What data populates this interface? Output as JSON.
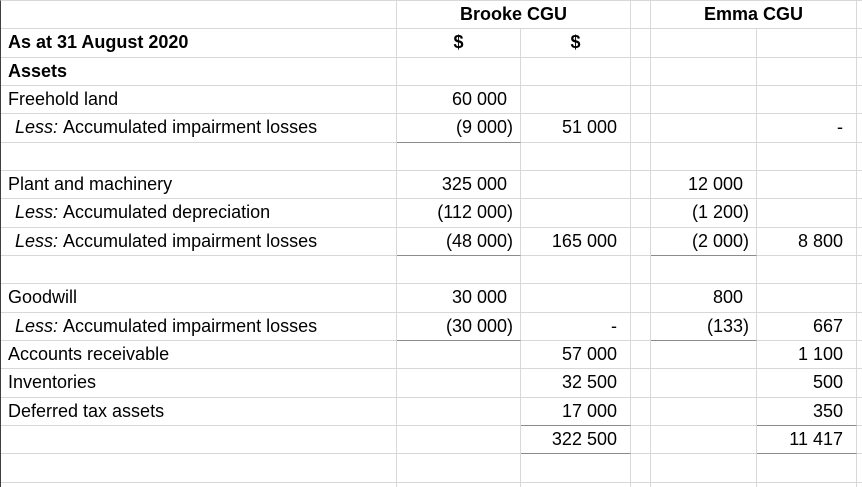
{
  "header_row": {
    "brooke": "Brooke CGU",
    "emma": "Emma CGU"
  },
  "unit_row": {
    "label": "As at 31 August 2020",
    "brooke_col1_unit": "$",
    "brooke_col2_unit": "$"
  },
  "body": [
    {
      "label": "Assets"
    },
    {
      "label": "Freehold land",
      "b": "60 000"
    },
    {
      "less": "Less:",
      "label": "Accumulated impairment losses",
      "b": "(9 000)",
      "c": "51 000",
      "f": "-"
    },
    {},
    {
      "label": "Plant and machinery",
      "b": "325 000",
      "e": "12 000"
    },
    {
      "less": "Less:",
      "label": "Accumulated depreciation",
      "b": "(112 000)",
      "e": "(1 200)"
    },
    {
      "less": "Less:",
      "label": "Accumulated impairment losses",
      "b": "(48 000)",
      "c": "165 000",
      "e": "(2 000)",
      "f": "8 800"
    },
    {},
    {
      "label": "Goodwill",
      "b": "30 000",
      "e": "800"
    },
    {
      "less": "Less:",
      "label": "Accumulated impairment losses",
      "b": "(30 000)",
      "c": "-",
      "e": "(133)",
      "f": "667"
    },
    {
      "label": "Accounts receivable",
      "c": "57 000",
      "f": "1 100"
    },
    {
      "label": "Inventories",
      "c": "32 500",
      "f": "500"
    },
    {
      "label": "Deferred tax assets",
      "c": "17 000",
      "f": "350"
    },
    {
      "c": "322 500",
      "f": "11 417"
    },
    {},
    {}
  ],
  "colors": {
    "gridline": "#d8d8d8",
    "subtotal_rule": "#8b8b8b",
    "left_edge": "#3f3f3f",
    "text": "#000000",
    "background": "#ffffff"
  }
}
